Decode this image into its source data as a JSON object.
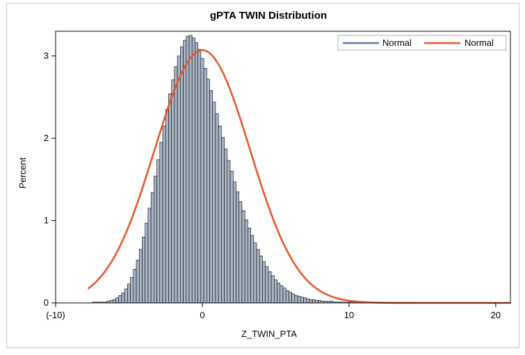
{
  "chart_data": {
    "type": "bar",
    "title": "gPTA TWIN Distribution",
    "xlabel": "Z_TWIN_PTA",
    "ylabel": "Percent",
    "xlim": [
      -10,
      21
    ],
    "ylim": [
      0,
      3.3
    ],
    "x_ticks": [
      {
        "value": -10,
        "label": "(-10)"
      },
      {
        "value": 0,
        "label": "0"
      },
      {
        "value": 10,
        "label": "10"
      },
      {
        "value": 20,
        "label": "20"
      }
    ],
    "y_ticks": [
      {
        "value": 0,
        "label": "0"
      },
      {
        "value": 1,
        "label": "1"
      },
      {
        "value": 2,
        "label": "2"
      },
      {
        "value": 3,
        "label": "3"
      }
    ],
    "histogram": {
      "bin_width": 0.2,
      "bins": [
        {
          "x": -7.4,
          "y": 0.01
        },
        {
          "x": -7.2,
          "y": 0.01
        },
        {
          "x": -7.0,
          "y": 0.01
        },
        {
          "x": -6.8,
          "y": 0.01
        },
        {
          "x": -6.6,
          "y": 0.01
        },
        {
          "x": -6.4,
          "y": 0.02
        },
        {
          "x": -6.2,
          "y": 0.03
        },
        {
          "x": -6.0,
          "y": 0.04
        },
        {
          "x": -5.8,
          "y": 0.06
        },
        {
          "x": -5.6,
          "y": 0.09
        },
        {
          "x": -5.4,
          "y": 0.12
        },
        {
          "x": -5.2,
          "y": 0.17
        },
        {
          "x": -5.0,
          "y": 0.23
        },
        {
          "x": -4.8,
          "y": 0.31
        },
        {
          "x": -4.6,
          "y": 0.41
        },
        {
          "x": -4.4,
          "y": 0.52
        },
        {
          "x": -4.2,
          "y": 0.65
        },
        {
          "x": -4.0,
          "y": 0.8
        },
        {
          "x": -3.8,
          "y": 0.97
        },
        {
          "x": -3.6,
          "y": 1.15
        },
        {
          "x": -3.4,
          "y": 1.34
        },
        {
          "x": -3.2,
          "y": 1.54
        },
        {
          "x": -3.0,
          "y": 1.74
        },
        {
          "x": -2.8,
          "y": 1.95
        },
        {
          "x": -2.6,
          "y": 2.15
        },
        {
          "x": -2.4,
          "y": 2.35
        },
        {
          "x": -2.2,
          "y": 2.54
        },
        {
          "x": -2.0,
          "y": 2.71
        },
        {
          "x": -1.8,
          "y": 2.87
        },
        {
          "x": -1.6,
          "y": 3.0
        },
        {
          "x": -1.4,
          "y": 3.11
        },
        {
          "x": -1.2,
          "y": 3.19
        },
        {
          "x": -1.0,
          "y": 3.24
        },
        {
          "x": -0.8,
          "y": 3.25
        },
        {
          "x": -0.6,
          "y": 3.22
        },
        {
          "x": -0.4,
          "y": 3.16
        },
        {
          "x": -0.2,
          "y": 3.08
        },
        {
          "x": 0.0,
          "y": 2.97
        },
        {
          "x": 0.2,
          "y": 2.85
        },
        {
          "x": 0.4,
          "y": 2.72
        },
        {
          "x": 0.6,
          "y": 2.58
        },
        {
          "x": 0.8,
          "y": 2.44
        },
        {
          "x": 1.0,
          "y": 2.3
        },
        {
          "x": 1.2,
          "y": 2.15
        },
        {
          "x": 1.4,
          "y": 2.01
        },
        {
          "x": 1.6,
          "y": 1.87
        },
        {
          "x": 1.8,
          "y": 1.73
        },
        {
          "x": 2.0,
          "y": 1.6
        },
        {
          "x": 2.2,
          "y": 1.47
        },
        {
          "x": 2.4,
          "y": 1.35
        },
        {
          "x": 2.6,
          "y": 1.23
        },
        {
          "x": 2.8,
          "y": 1.12
        },
        {
          "x": 3.0,
          "y": 1.01
        },
        {
          "x": 3.2,
          "y": 0.91
        },
        {
          "x": 3.4,
          "y": 0.82
        },
        {
          "x": 3.6,
          "y": 0.73
        },
        {
          "x": 3.8,
          "y": 0.65
        },
        {
          "x": 4.0,
          "y": 0.57
        },
        {
          "x": 4.2,
          "y": 0.5
        },
        {
          "x": 4.4,
          "y": 0.44
        },
        {
          "x": 4.6,
          "y": 0.38
        },
        {
          "x": 4.8,
          "y": 0.33
        },
        {
          "x": 5.0,
          "y": 0.28
        },
        {
          "x": 5.2,
          "y": 0.24
        },
        {
          "x": 5.4,
          "y": 0.21
        },
        {
          "x": 5.6,
          "y": 0.18
        },
        {
          "x": 5.8,
          "y": 0.15
        },
        {
          "x": 6.0,
          "y": 0.13
        },
        {
          "x": 6.2,
          "y": 0.11
        },
        {
          "x": 6.4,
          "y": 0.09
        },
        {
          "x": 6.6,
          "y": 0.08
        },
        {
          "x": 6.8,
          "y": 0.07
        },
        {
          "x": 7.0,
          "y": 0.06
        },
        {
          "x": 7.2,
          "y": 0.05
        },
        {
          "x": 7.4,
          "y": 0.04
        },
        {
          "x": 7.6,
          "y": 0.04
        },
        {
          "x": 7.8,
          "y": 0.03
        },
        {
          "x": 8.0,
          "y": 0.03
        },
        {
          "x": 8.2,
          "y": 0.02
        },
        {
          "x": 8.4,
          "y": 0.02
        },
        {
          "x": 8.6,
          "y": 0.02
        },
        {
          "x": 8.8,
          "y": 0.02
        },
        {
          "x": 9.0,
          "y": 0.01
        },
        {
          "x": 9.2,
          "y": 0.01
        },
        {
          "x": 9.4,
          "y": 0.01
        },
        {
          "x": 9.6,
          "y": 0.01
        },
        {
          "x": 9.8,
          "y": 0.01
        },
        {
          "x": 10.0,
          "y": 0.01
        },
        {
          "x": 10.2,
          "y": 0.01
        },
        {
          "x": 10.4,
          "y": 0.01
        },
        {
          "x": 10.6,
          "y": 0.01
        },
        {
          "x": 10.8,
          "y": 0.01
        },
        {
          "x": 11.0,
          "y": 0.01
        },
        {
          "x": 11.2,
          "y": 0.01
        }
      ]
    },
    "series": [
      {
        "name": "Normal",
        "kind": "line",
        "color": "#5b7fa6",
        "note": "overlaps histogram edge; not separately visible"
      },
      {
        "name": "Normal",
        "kind": "normal_curve",
        "color": "#e8562a",
        "mean": 0,
        "sd": 3.25,
        "peak": 3.07,
        "x_range": [
          -7.8,
          21
        ]
      }
    ],
    "legend": {
      "position": "top-right",
      "entries": [
        {
          "label": "Normal",
          "color": "#5b7fa6"
        },
        {
          "label": "Normal",
          "color": "#e8562a"
        }
      ]
    },
    "colors": {
      "bar_fill": "#a9b7c6",
      "bar_stroke": "#000000",
      "axis": "#000000"
    }
  }
}
